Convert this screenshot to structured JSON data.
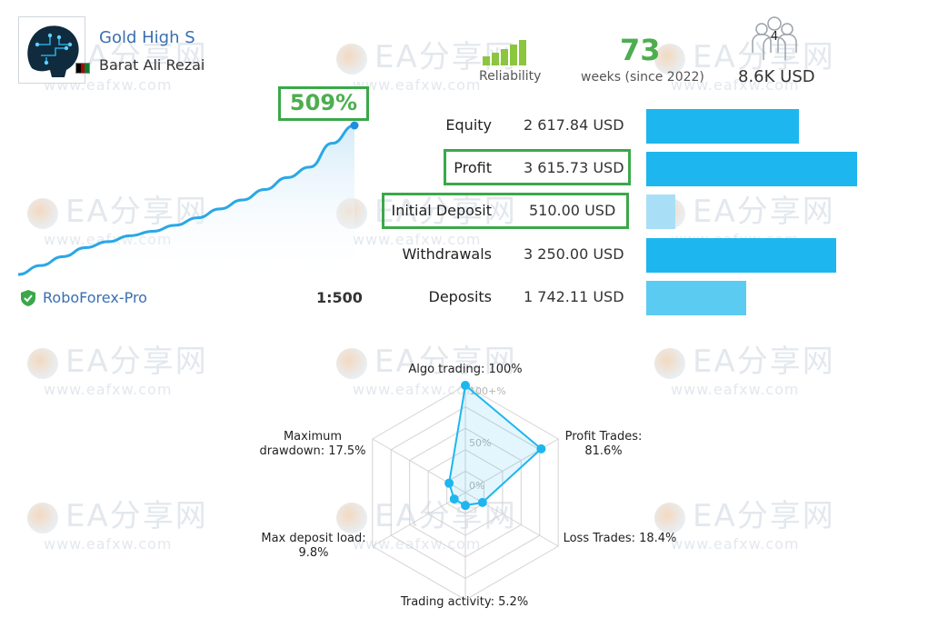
{
  "signal": {
    "title": "Gold High S",
    "author": "Barat Ali Rezai",
    "flag_colors": [
      "#000000",
      "#b00000",
      "#0a7a2f"
    ]
  },
  "stats": {
    "reliability_label": "Reliability",
    "weeks_value": "73",
    "weeks_label": "weeks (since 2022)",
    "subscribers_count": "4",
    "subscribers_value": "8.6K USD"
  },
  "growth": {
    "percent_label": "509%",
    "curve_points": [
      0,
      6,
      12,
      18,
      22,
      26,
      29,
      33,
      38,
      44,
      50,
      57,
      65,
      72,
      88,
      100
    ]
  },
  "broker": {
    "name": "RoboForex-Pro",
    "leverage": "1:500"
  },
  "finance": {
    "rows": [
      {
        "label": "Equity",
        "value": "2 617.84 USD",
        "fraction": 0.58,
        "color": "#1eb6ee",
        "highlight": false
      },
      {
        "label": "Profit",
        "value": "3 615.73 USD",
        "fraction": 0.8,
        "color": "#1eb6ee",
        "highlight": true
      },
      {
        "label": "Initial Deposit",
        "value": "510.00 USD",
        "fraction": 0.11,
        "color": "#a9dff6",
        "highlight": true
      },
      {
        "label": "Withdrawals",
        "value": "3 250.00 USD",
        "fraction": 0.72,
        "color": "#1eb6ee",
        "highlight": false
      },
      {
        "label": "Deposits",
        "value": "1 742.11 USD",
        "fraction": 0.38,
        "color": "#5ccbf2",
        "highlight": false
      }
    ]
  },
  "radar": {
    "scale_labels": [
      "100+%",
      "50%",
      "0%"
    ],
    "axes": [
      {
        "label": "Algo trading: 100%",
        "value": 100
      },
      {
        "label": "Profit Trades: 81.6%",
        "value": 81.6
      },
      {
        "label": "Loss Trades: 18.4%",
        "value": 18.4
      },
      {
        "label": "Trading activity: 5.2%",
        "value": 5.2
      },
      {
        "label": "Max deposit load: 9.8%",
        "value": 9.8
      },
      {
        "label": "Maximum drawdown: 17.5%",
        "value": 17.5
      }
    ]
  },
  "watermark": {
    "big": "EA分享网",
    "small": "www.eafxw.com"
  },
  "colors": {
    "accent_green": "#4cae4f",
    "link_blue": "#3a6fb0",
    "bar_blue": "#1eb6ee"
  }
}
